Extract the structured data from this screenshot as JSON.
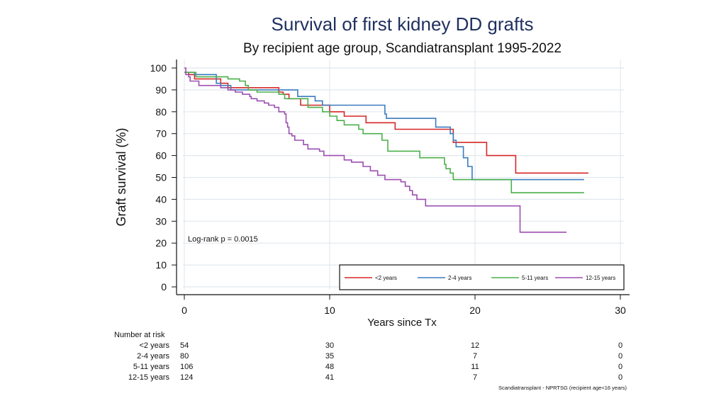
{
  "colors": {
    "red": "#d62728",
    "blue": "#3a7bbf",
    "green": "#4ab04a",
    "purple": "#9b4fb0",
    "grid": "#e2e8ee",
    "axis": "#111111"
  },
  "chart_data": {
    "type": "line",
    "subtype": "kaplan-meier-step",
    "title": "Survival of first kidney DD grafts",
    "subtitle": "By recipient age group, Scandiatransplant 1995-2022",
    "xlabel": "Years since Tx",
    "ylabel": "Graft survival (%)",
    "xlim": [
      0,
      30
    ],
    "ylim": [
      0,
      100
    ],
    "xticks": [
      "0",
      "10",
      "20",
      "30"
    ],
    "yticks": [
      "0",
      "10",
      "20",
      "30",
      "40",
      "50",
      "60",
      "70",
      "80",
      "90",
      "100"
    ],
    "annotation": "Log-rank p = 0.0015",
    "legend_position": "bottom-right",
    "series": [
      {
        "name": "<2 years",
        "color": "#d62728",
        "points": [
          [
            0,
            98
          ],
          [
            0.3,
            97
          ],
          [
            0.7,
            95
          ],
          [
            2.5,
            93
          ],
          [
            3,
            91
          ],
          [
            6.5,
            89
          ],
          [
            6.8,
            88
          ],
          [
            7.2,
            86
          ],
          [
            8,
            83
          ],
          [
            9.8,
            83
          ],
          [
            10,
            80
          ],
          [
            11,
            78
          ],
          [
            12.5,
            75
          ],
          [
            14.5,
            72
          ],
          [
            18.5,
            69
          ],
          [
            18.5,
            66
          ],
          [
            20.8,
            66
          ],
          [
            20.8,
            60
          ],
          [
            22.8,
            60
          ],
          [
            22.8,
            52
          ],
          [
            27.8,
            52
          ]
        ]
      },
      {
        "name": "2-4 years",
        "color": "#3a7bbf",
        "points": [
          [
            0,
            98
          ],
          [
            0.7,
            97
          ],
          [
            2.2,
            95
          ],
          [
            2.2,
            93
          ],
          [
            2.5,
            92
          ],
          [
            3.2,
            90
          ],
          [
            7,
            90
          ],
          [
            7.8,
            87
          ],
          [
            9,
            85
          ],
          [
            9.5,
            83
          ],
          [
            13.7,
            83
          ],
          [
            13.8,
            79
          ],
          [
            13.9,
            77
          ],
          [
            17.3,
            77
          ],
          [
            17.3,
            73
          ],
          [
            18.3,
            70
          ],
          [
            18.5,
            67
          ],
          [
            18.7,
            64
          ],
          [
            19.2,
            59
          ],
          [
            19.5,
            55
          ],
          [
            19.8,
            49
          ],
          [
            27.5,
            49
          ]
        ]
      },
      {
        "name": "5-11 years",
        "color": "#4ab04a",
        "points": [
          [
            0,
            98
          ],
          [
            0.8,
            96
          ],
          [
            3,
            95
          ],
          [
            3.8,
            94
          ],
          [
            4.2,
            92
          ],
          [
            4.4,
            90
          ],
          [
            5,
            89
          ],
          [
            6.5,
            88
          ],
          [
            6.9,
            86
          ],
          [
            8.5,
            82
          ],
          [
            9.5,
            80
          ],
          [
            10,
            78
          ],
          [
            10.5,
            76
          ],
          [
            11,
            74
          ],
          [
            12,
            72
          ],
          [
            12.3,
            70
          ],
          [
            13.2,
            70
          ],
          [
            13.6,
            67
          ],
          [
            14,
            62
          ],
          [
            16,
            62
          ],
          [
            16.2,
            59
          ],
          [
            17.8,
            59
          ],
          [
            17.9,
            56
          ],
          [
            18,
            54
          ],
          [
            18.3,
            52
          ],
          [
            18.5,
            49
          ],
          [
            22.5,
            49
          ],
          [
            22.5,
            43
          ],
          [
            27.5,
            43
          ]
        ]
      },
      {
        "name": "12-15 years",
        "color": "#9b4fb0",
        "points": [
          [
            0,
            100
          ],
          [
            0.1,
            97
          ],
          [
            0.3,
            96
          ],
          [
            0.4,
            94
          ],
          [
            1,
            92
          ],
          [
            2.5,
            91
          ],
          [
            3,
            90
          ],
          [
            3.5,
            89
          ],
          [
            4,
            88
          ],
          [
            4.5,
            87
          ],
          [
            4.6,
            86
          ],
          [
            5,
            85
          ],
          [
            5.5,
            84
          ],
          [
            5.8,
            83
          ],
          [
            6.2,
            82
          ],
          [
            6.5,
            80
          ],
          [
            6.9,
            79
          ],
          [
            7,
            75
          ],
          [
            7.1,
            73
          ],
          [
            7.2,
            70
          ],
          [
            7.4,
            69
          ],
          [
            7.6,
            67
          ],
          [
            8.2,
            65
          ],
          [
            8.5,
            63
          ],
          [
            9.3,
            62
          ],
          [
            9.6,
            60
          ],
          [
            10.8,
            60
          ],
          [
            11,
            58
          ],
          [
            11.5,
            57
          ],
          [
            12.3,
            55
          ],
          [
            12.8,
            53
          ],
          [
            13.3,
            51
          ],
          [
            13.8,
            49
          ],
          [
            14.9,
            48
          ],
          [
            15.2,
            46
          ],
          [
            15.5,
            44
          ],
          [
            15.7,
            42
          ],
          [
            16,
            40
          ],
          [
            16.6,
            37
          ],
          [
            23,
            37
          ],
          [
            23.1,
            25
          ],
          [
            26.3,
            25
          ]
        ]
      }
    ],
    "risk_table": {
      "label": "Number at risk",
      "groups": [
        {
          "label": "<2 years",
          "counts": [
            "54",
            "30",
            "12",
            "0"
          ]
        },
        {
          "label": "2-4 years",
          "counts": [
            "80",
            "35",
            "7",
            "0"
          ]
        },
        {
          "label": "5-11 years",
          "counts": [
            "106",
            "48",
            "11",
            "0"
          ]
        },
        {
          "label": "12-15 years",
          "counts": [
            "124",
            "41",
            "7",
            "0"
          ]
        }
      ]
    },
    "source_note": "Scandiatransplant - NPRTSG (recipient age<16 years)"
  }
}
